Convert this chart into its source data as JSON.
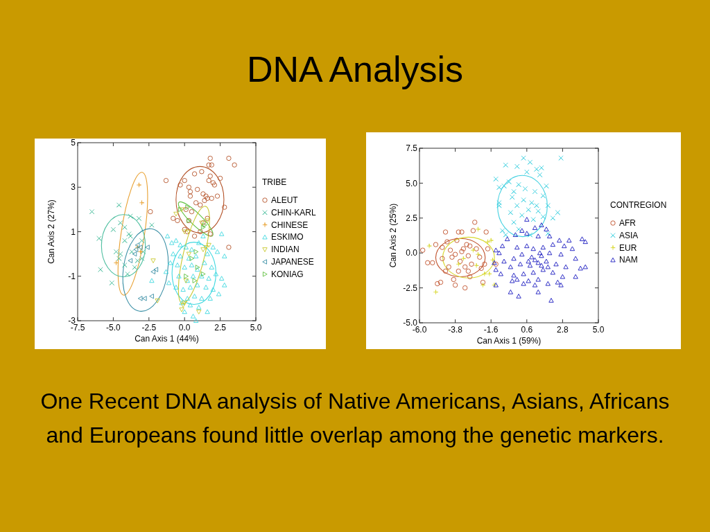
{
  "chart_data": [
    {
      "type": "scatter",
      "title": "DNA Analysis",
      "xlabel": "Can Axis 1 (44%)",
      "ylabel": "Can Axis 2 (27%)",
      "legend_title": "TRIBE",
      "legend": "right",
      "grid": false,
      "xlim": [
        -7.5,
        5
      ],
      "ylim": [
        -3,
        5
      ],
      "xticks": [
        -7.5,
        {
          "value": -5,
          "label": "-5.0"
        },
        -2.5,
        {
          "value": 0,
          "label": "0.0"
        },
        2.5,
        {
          "value": 5,
          "label": "5.0"
        }
      ],
      "yticks": [
        -3,
        -1,
        1,
        3,
        5
      ],
      "series": [
        {
          "name": "ALEUT",
          "color": "#b5552b",
          "marker": "circle",
          "x": [
            1.8,
            3.1,
            3.5,
            1.7,
            1.9,
            -1.3,
            0.7,
            1.2,
            1.8,
            2.5,
            2.0,
            1.7,
            2.1,
            0.0,
            -0.3,
            0.3,
            0.4,
            0.4,
            0.9,
            1.3,
            1.5,
            1.6,
            1.9,
            2.3,
            1.4,
            0.8,
            1.1,
            2.8,
            0.1,
            0.5,
            -2.4,
            -0.5,
            -0.8,
            0.3,
            1.6,
            1.3,
            0.0,
            0.2,
            0.7,
            1.8,
            1.1,
            3.1
          ],
          "values": [
            4.3,
            4.3,
            4.0,
            4.0,
            4.0,
            3.3,
            3.6,
            3.7,
            3.5,
            3.4,
            3.2,
            3.3,
            3.1,
            3.3,
            3.1,
            3.0,
            2.8,
            2.6,
            2.9,
            2.7,
            2.6,
            2.5,
            2.5,
            2.6,
            2.4,
            2.3,
            2.2,
            2.1,
            2.0,
            1.9,
            1.9,
            1.5,
            1.6,
            1.5,
            1.6,
            1.4,
            1.1,
            1.0,
            0.8,
            0.9,
            1.0,
            0.3
          ]
        },
        {
          "name": "CHIN-KARL",
          "color": "#4fbfa0",
          "marker": "x",
          "x": [
            -6.5,
            -4.6,
            -6.0,
            -5.0,
            -4.5,
            -4.2,
            -3.9,
            -3.8,
            -4.2,
            -3.2,
            -2.3,
            -3.0,
            -4.8,
            -4.5,
            -4.6,
            -3.7,
            -3.0,
            -4.2,
            -3.5,
            -5.9,
            -4.0,
            -5.1,
            -3.3,
            -2.9,
            -3.8
          ],
          "values": [
            1.9,
            2.2,
            0.7,
            1.1,
            1.4,
            1.2,
            0.9,
            0.8,
            0.6,
            1.6,
            1.3,
            0.6,
            0.1,
            0.0,
            -0.2,
            0.1,
            -0.2,
            -0.5,
            -0.6,
            -0.7,
            -0.9,
            -1.3,
            -0.3,
            0.1,
            1.7
          ]
        },
        {
          "name": "CHINESE",
          "color": "#e8a030",
          "marker": "cross",
          "x": [
            -3.2,
            -3.0,
            -3.3,
            -3.1,
            -4.8
          ],
          "values": [
            3.1,
            2.3,
            0.3,
            0.1,
            -0.4
          ]
        },
        {
          "name": "ESKIMO",
          "color": "#3fd8e0",
          "marker": "triangle",
          "x": [
            -1.2,
            -0.9,
            -0.6,
            -0.3,
            0.1,
            0.5,
            1.0,
            1.3,
            2.6,
            2.0,
            2.3,
            2.8,
            1.6,
            0.8,
            0.3,
            -0.3,
            -0.8,
            -1.0,
            -0.5,
            0.0,
            0.5,
            0.9,
            1.4,
            1.9,
            2.2,
            2.6,
            1.7,
            1.2,
            0.6,
            0.2,
            -0.4,
            -1.1,
            -0.6,
            -0.1,
            0.4,
            0.9,
            1.5,
            2.0,
            2.4,
            2.8,
            1.8,
            1.2,
            0.7,
            0.2,
            -0.2,
            0.4,
            1.0,
            1.6,
            0.0,
            0.6,
            0.8,
            -2.3,
            -1.3
          ],
          "values": [
            0.8,
            0.5,
            0.6,
            0.4,
            0.3,
            0.2,
            0.5,
            0.8,
            0.9,
            0.3,
            0.1,
            -0.1,
            0.0,
            -0.1,
            -0.2,
            -0.1,
            0.0,
            -0.4,
            -0.5,
            -0.6,
            -0.5,
            -0.7,
            -0.4,
            -0.6,
            -0.9,
            -1.1,
            -1.1,
            -1.0,
            -1.0,
            -1.2,
            -1.0,
            -1.3,
            -1.5,
            -1.6,
            -1.5,
            -1.4,
            -1.5,
            -1.6,
            -1.8,
            -1.4,
            -2.0,
            -2.0,
            -1.9,
            -2.0,
            -2.2,
            -2.3,
            -2.4,
            -2.6,
            -2.6,
            -2.8,
            -3.0,
            -1.2,
            -0.8
          ]
        },
        {
          "name": "INDIAN",
          "color": "#c8c830",
          "marker": "triangle-down",
          "x": [
            -0.6,
            -0.2,
            0.0,
            0.3,
            1.6,
            1.2,
            1.5,
            1.7,
            1.3,
            -2.2,
            -1.9,
            0.3,
            -0.1,
            0.0,
            -0.2,
            1.0,
            0.1
          ],
          "values": [
            1.8,
            2.0,
            1.0,
            1.0,
            1.5,
            1.4,
            0.3,
            0.4,
            0.2,
            -0.3,
            -2.1,
            0.0,
            -2.3,
            -2.2,
            -2.5,
            -2.6,
            -1.2
          ]
        },
        {
          "name": "JAPANESE",
          "color": "#3a8fa5",
          "marker": "triangle-left",
          "x": [
            -3.3,
            -3.1,
            -3.4,
            -3.8,
            -3.5,
            -2.2,
            -2.0,
            -3.1,
            -2.8,
            -2.3,
            -2.6
          ],
          "values": [
            0.4,
            0.3,
            0.2,
            -0.3,
            0.0,
            -0.8,
            -0.7,
            -2.0,
            -2.0,
            -1.9,
            0.3
          ]
        },
        {
          "name": "KONIAG",
          "color": "#5fc040",
          "marker": "triangle-right",
          "x": [
            -0.3,
            0.2,
            1.3,
            1.4,
            0.3,
            0.5,
            0.8,
            0.1,
            0.7,
            1.3,
            0.9
          ],
          "values": [
            2.0,
            2.1,
            1.2,
            1.3,
            1.5,
            -0.2,
            0.1,
            -1.0,
            -1.2,
            -0.9,
            -0.6
          ]
        }
      ]
    },
    {
      "type": "scatter",
      "xlabel": "Can Axis 1 (59%)",
      "ylabel": "Can Axis 2 (25%)",
      "legend_title": "CONTREGION",
      "legend": "right",
      "grid": false,
      "annotations": [
        "One Recent DNA analysis of Native Americans, Asians, Africans and Europeans found little overlap among the genetic markers."
      ],
      "xlim": [
        -6,
        5
      ],
      "ylim": [
        -5,
        7.5
      ],
      "xticks": [
        {
          "value": -6,
          "label": "-6.0"
        },
        -3.8,
        -1.6,
        0.6,
        2.8,
        {
          "value": 5,
          "label": "5.0"
        }
      ],
      "yticks": [
        {
          "value": -5,
          "label": "-5.0"
        },
        -2.5,
        {
          "value": 0,
          "label": "0.0"
        },
        2.5,
        {
          "value": 5,
          "label": "5.0"
        },
        7.5
      ],
      "series": [
        {
          "name": "AFR",
          "color": "#c0502a",
          "marker": "circle",
          "x": [
            -5.8,
            -5.5,
            -5.2,
            -4.9,
            -4.7,
            -5.0,
            -4.6,
            -4.4,
            -4.3,
            -4.6,
            -4.4,
            -4.2,
            -4.0,
            -3.9,
            -3.8,
            -3.6,
            -3.7,
            -3.4,
            -3.6,
            -3.3,
            -3.1,
            -3.0,
            -2.8,
            -3.2,
            -3.5,
            -2.9,
            -3.2,
            -2.6,
            -2.7,
            -2.5,
            -2.3,
            -2.2,
            -2.0,
            -1.9,
            -1.8,
            -2.1,
            -1.3,
            -3.8,
            -3.4,
            -2.9,
            -4.1,
            -3.0
          ],
          "values": [
            0.2,
            -0.7,
            -0.7,
            -2.2,
            -2.1,
            0.6,
            0.4,
            1.5,
            0.8,
            -0.4,
            -1.3,
            -1.0,
            -0.3,
            -1.9,
            -2.3,
            -1.3,
            0.9,
            1.5,
            1.5,
            0.3,
            0.6,
            -0.2,
            -0.8,
            -1.0,
            -0.6,
            -1.7,
            -2.5,
            2.2,
            1.6,
            0.3,
            -0.3,
            -1.1,
            -0.8,
            1.5,
            0.3,
            -2.1,
            -0.8,
            -0.1,
            0.1,
            0.5,
            0.2,
            -1.3
          ]
        },
        {
          "name": "ASIA",
          "color": "#40d0e0",
          "marker": "x",
          "x": [
            -0.9,
            -1.1,
            -0.8,
            -0.5,
            -1.1,
            -0.7,
            -1.3,
            0.4,
            0.8,
            0.0,
            1.2,
            1.5,
            2.7,
            1.8,
            0.6,
            0.1,
            1.4,
            -0.3,
            0.5,
            1.1,
            1.6,
            0.9,
            0.4,
            0.0,
            -0.4,
            0.7,
            1.2,
            1.9,
            2.5,
            2.2,
            1.6,
            1.0,
            0.3,
            -0.2,
            0.1,
            0.8,
            1.9,
            -0.7,
            -0.2,
            1.3,
            -1.1
          ],
          "values": [
            1.6,
            3.6,
            4.8,
            5.1,
            3.4,
            6.3,
            5.3,
            6.8,
            6.5,
            6.2,
            6.0,
            6.1,
            6.8,
            4.8,
            5.8,
            4.9,
            5.6,
            4.0,
            4.6,
            4.4,
            4.1,
            3.6,
            3.8,
            3.4,
            2.9,
            3.1,
            3.4,
            3.4,
            2.9,
            2.5,
            2.6,
            2.4,
            2.7,
            2.2,
            1.7,
            1.3,
            1.4,
            1.3,
            4.4,
            3.0,
            4.7
          ]
        },
        {
          "name": "EUR",
          "color": "#d8d830",
          "marker": "cross",
          "x": [
            -5.4,
            -5.0,
            -2.4,
            -2.1,
            -1.4,
            -2.7,
            -2.4,
            -3.3,
            -2.0,
            -1.7,
            -1.6,
            -1.8,
            -3.6,
            -2.5,
            -1.5
          ],
          "values": [
            0.5,
            -2.8,
            1.7,
            -2.3,
            -2.3,
            0.2,
            -0.1,
            -0.4,
            -1.5,
            -1.5,
            0.9,
            0.8,
            -0.8,
            -0.9,
            -0.5
          ]
        },
        {
          "name": "NAM",
          "color": "#1a1ac0",
          "marker": "triangle",
          "x": [
            0.6,
            1.5,
            1.1,
            0.3,
            1.8,
            -0.1,
            0.6,
            1.3,
            2.0,
            2.6,
            3.2,
            4.0,
            4.2,
            -0.6,
            -0.9,
            -1.3,
            -1.1,
            0.0,
            0.6,
            1.0,
            1.6,
            2.2,
            2.9,
            3.4,
            3.6,
            2.7,
            2.0,
            1.5,
            0.9,
            0.3,
            -0.2,
            -0.8,
            -1.4,
            -1.3,
            -0.4,
            0.2,
            0.8,
            1.3,
            1.8,
            2.4,
            3.0,
            3.9,
            4.2,
            3.6,
            2.8,
            2.2,
            1.6,
            1.0,
            0.4,
            -0.2,
            -1.0,
            0.0,
            0.7,
            1.3,
            1.9,
            2.5,
            1.1,
            0.4,
            -0.3,
            -1.3,
            -0.4,
            0.1,
            1.3,
            2.1,
            2.7,
            1.5,
            1.1,
            0.7,
            1.9,
            1.4
          ],
          "values": [
            2.4,
            2.0,
            1.8,
            1.6,
            1.7,
            1.3,
            1.4,
            1.2,
            1.2,
            0.9,
            0.9,
            1.0,
            0.8,
            1.0,
            0.5,
            0.2,
            0.0,
            0.4,
            0.5,
            0.3,
            0.4,
            0.6,
            0.5,
            0.3,
            -0.4,
            -0.1,
            0.0,
            -0.2,
            -0.3,
            -0.1,
            -0.4,
            -0.6,
            -0.7,
            -1.2,
            -1.0,
            -0.8,
            -0.9,
            -0.7,
            -0.6,
            -0.8,
            -1.0,
            -1.1,
            -1.0,
            -1.7,
            -1.7,
            -1.4,
            -1.2,
            -1.4,
            -1.5,
            -1.6,
            -1.5,
            -1.9,
            -2.0,
            -1.9,
            -2.2,
            -2.1,
            -2.3,
            -2.2,
            -2.0,
            -2.3,
            -2.8,
            -3.1,
            -2.8,
            -3.4,
            -2.3,
            -0.9,
            -0.5,
            -0.6,
            -1.0,
            0.0
          ]
        }
      ]
    }
  ]
}
